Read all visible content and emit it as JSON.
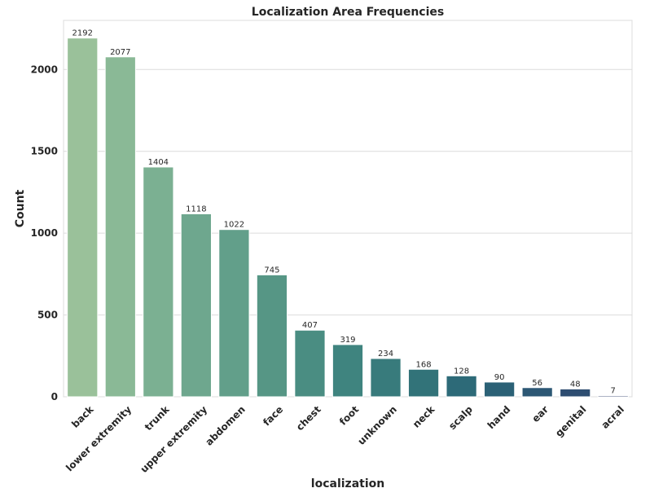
{
  "chart_data": {
    "type": "bar",
    "title": "Localization Area Frequencies",
    "xlabel": "localization",
    "ylabel": "Count",
    "categories": [
      "back",
      "lower extremity",
      "trunk",
      "upper extremity",
      "abdomen",
      "face",
      "chest",
      "foot",
      "unknown",
      "neck",
      "scalp",
      "hand",
      "ear",
      "genital",
      "acral"
    ],
    "values": [
      2192,
      2077,
      1404,
      1118,
      1022,
      745,
      407,
      319,
      234,
      168,
      128,
      90,
      56,
      48,
      7
    ],
    "data_labels": [
      "2192",
      "2077",
      "1404",
      "1118",
      "1022",
      "745",
      "407",
      "319",
      "234",
      "168",
      "128",
      "90",
      "56",
      "48",
      "7"
    ],
    "ylim": [
      0,
      2300
    ],
    "yticks": [
      0,
      500,
      1000,
      1500,
      2000
    ],
    "ytick_labels": [
      "0",
      "500",
      "1000",
      "1500",
      "2000"
    ],
    "grid": true,
    "legend": null,
    "colors": [
      "#9ac19a",
      "#8ab996",
      "#7bb092",
      "#6ea78e",
      "#629f8a",
      "#569685",
      "#4a8d82",
      "#3f847f",
      "#387b7c",
      "#327379",
      "#2d6a78",
      "#2b6176",
      "#2c5774",
      "#2e4d71",
      "#32426e"
    ]
  }
}
